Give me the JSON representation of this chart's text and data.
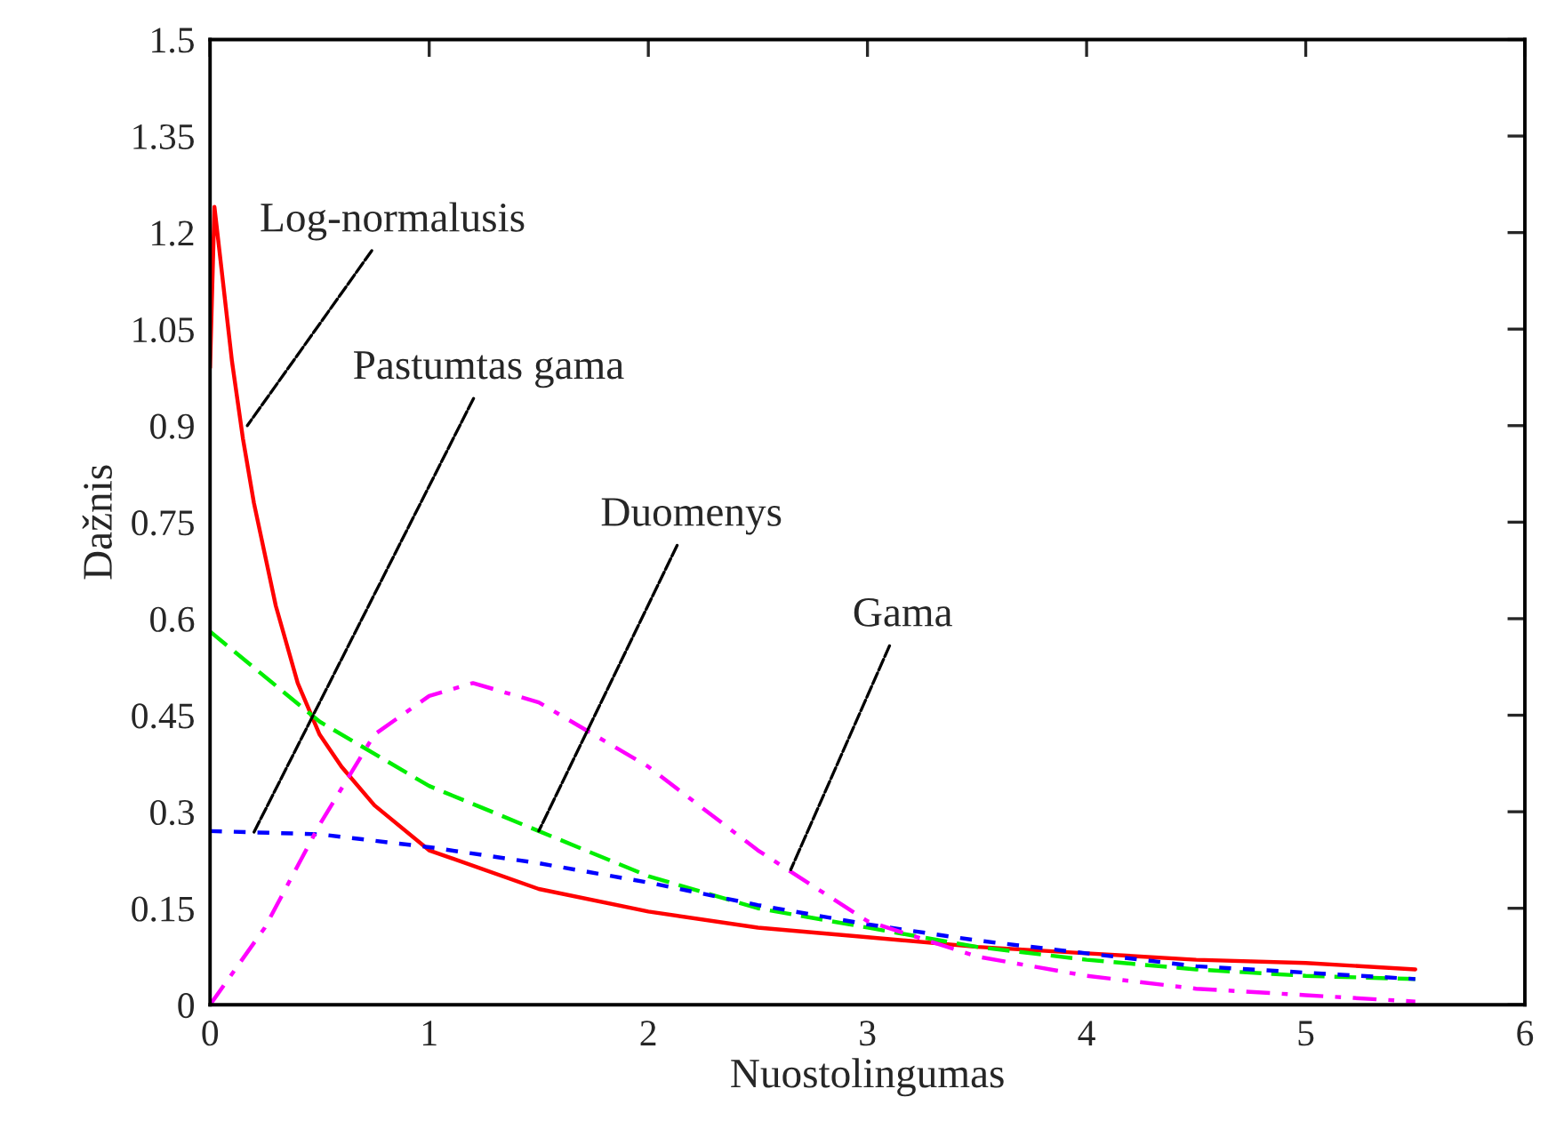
{
  "chart_data": {
    "type": "line",
    "xlabel": "Nuostolingumas",
    "ylabel": "Dažnis",
    "xlim": [
      0,
      6
    ],
    "ylim": [
      0,
      1.5
    ],
    "xticks": [
      0,
      1,
      2,
      3,
      4,
      5,
      6
    ],
    "yticks": [
      0,
      0.15,
      0.3,
      0.45,
      0.6,
      0.75,
      0.9,
      1.05,
      1.2,
      1.35,
      1.5
    ],
    "grid": false,
    "legend": false,
    "series": [
      {
        "color": "#ff0000",
        "line_style": "solid",
        "x": [
          0,
          0.02,
          0.05,
          0.1,
          0.15,
          0.2,
          0.3,
          0.4,
          0.5,
          0.6,
          0.75,
          1,
          1.5,
          2,
          2.5,
          3,
          3.5,
          4,
          4.5,
          5,
          5.5
        ],
        "values": [
          0.99,
          1.24,
          1.15,
          1.0,
          0.88,
          0.78,
          0.62,
          0.5,
          0.42,
          0.37,
          0.31,
          0.24,
          0.18,
          0.145,
          0.12,
          0.105,
          0.09,
          0.08,
          0.07,
          0.065,
          0.055
        ]
      },
      {
        "color": "#00ee00",
        "line_style": "dashed",
        "x": [
          0,
          0.5,
          1,
          1.5,
          2,
          2.5,
          3,
          3.5,
          4,
          4.5,
          5,
          5.5
        ],
        "values": [
          0.58,
          0.44,
          0.34,
          0.27,
          0.2,
          0.15,
          0.12,
          0.09,
          0.07,
          0.055,
          0.045,
          0.04
        ]
      },
      {
        "color": "#0000ff",
        "line_style": "dotted",
        "x": [
          0,
          0.5,
          1,
          1.5,
          2,
          2.5,
          3,
          3.5,
          4,
          4.5,
          5,
          5.5
        ],
        "values": [
          0.27,
          0.265,
          0.245,
          0.22,
          0.19,
          0.155,
          0.125,
          0.1,
          0.08,
          0.06,
          0.05,
          0.04
        ]
      },
      {
        "color": "#ff00ff",
        "line_style": "dashdot",
        "x": [
          0,
          0.25,
          0.5,
          0.75,
          1,
          1.2,
          1.5,
          2,
          2.5,
          3,
          3.5,
          4,
          4.5,
          5,
          5.5
        ],
        "values": [
          0,
          0.12,
          0.28,
          0.42,
          0.48,
          0.5,
          0.47,
          0.37,
          0.24,
          0.13,
          0.075,
          0.045,
          0.025,
          0.015,
          0.005
        ]
      }
    ],
    "annotations": [
      {
        "text": "Log-normalusis",
        "x": 0.17,
        "y": 0.9
      },
      {
        "text": "Pastumtas gama",
        "x": 0.2,
        "y": 0.268
      },
      {
        "text": "Duomenys",
        "x": 1.5,
        "y": 0.27
      },
      {
        "text": "Gama",
        "x": 2.65,
        "y": 0.21
      }
    ]
  }
}
